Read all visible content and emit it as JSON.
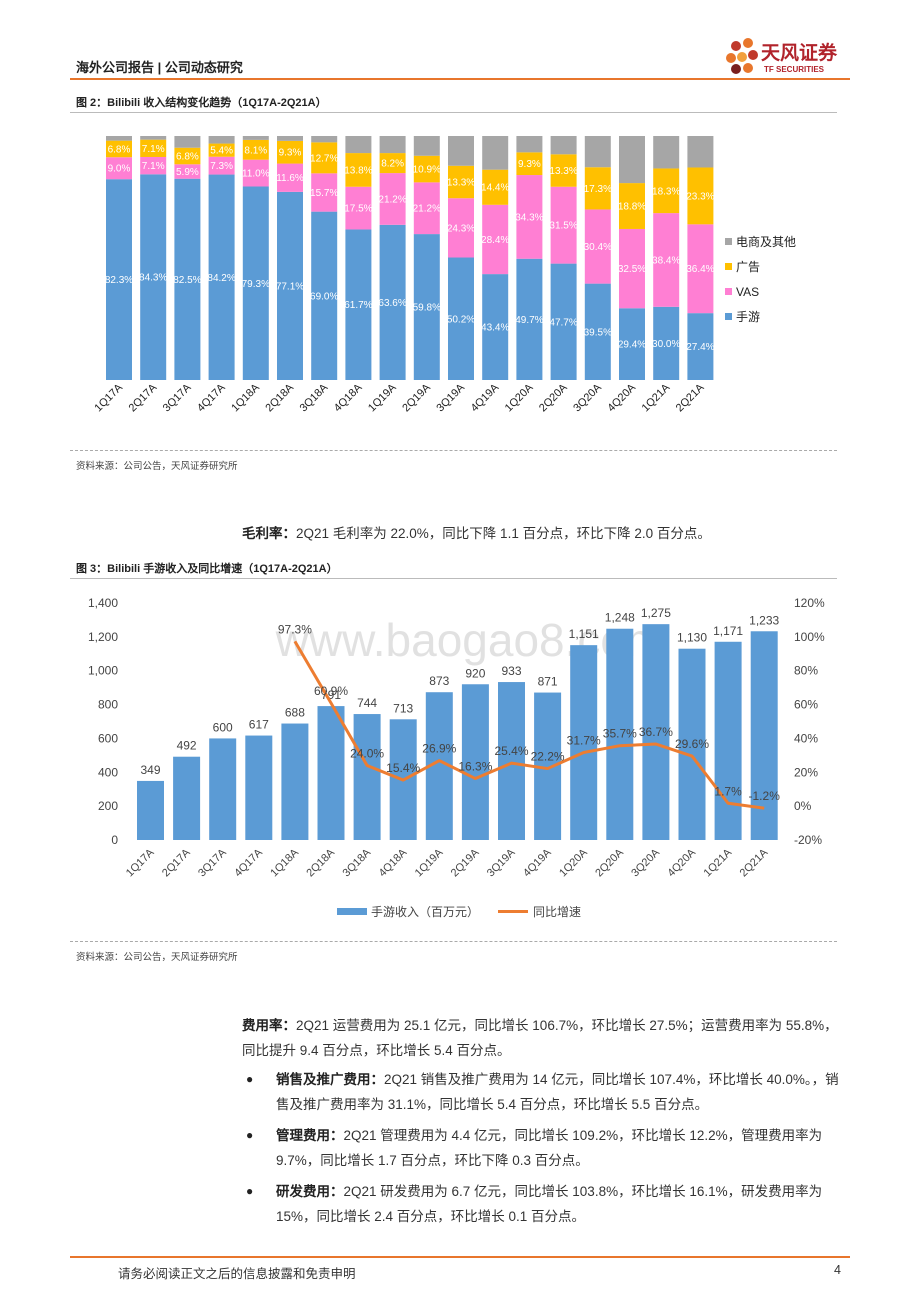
{
  "header": {
    "left": "海外公司报告 | 公司动态研究",
    "logo_cn": "天风证券",
    "logo_en": "TF SECURITIES"
  },
  "fig2": {
    "title": "图 2：Bilibili 收入结构变化趋势（1Q17A-2Q21A）",
    "source": "资料来源：公司公告，天风证券研究所"
  },
  "text_gross": {
    "label": "毛利率：",
    "body": "2Q21 毛利率为 22.0%，同比下降 1.1 百分点，环比下降 2.0 百分点。"
  },
  "fig3": {
    "title": "图 3：Bilibili 手游收入及同比增速（1Q17A-2Q21A）",
    "source": "资料来源：公司公告，天风证券研究所",
    "watermark": "www.baogao8.com"
  },
  "text_cost": {
    "label": "费用率：",
    "body": "2Q21 运营费用为 25.1 亿元，同比增长 106.7%，环比增长 27.5%；运营费用率为 55.8%，同比提升 9.4 百分点，环比增长 5.4 百分点。"
  },
  "bullets": [
    {
      "label": "销售及推广费用：",
      "body": "2Q21 销售及推广费用为 14 亿元，同比增长 107.4%，环比增长 40.0%。，销售及推广费用率为 31.1%，同比增长 5.4 百分点，环比增长 5.5 百分点。"
    },
    {
      "label": "管理费用：",
      "body": "2Q21 管理费用为 4.4 亿元，同比增长 109.2%，环比增长 12.2%，管理费用率为 9.7%，同比增长 1.7 百分点，环比下降 0.3 百分点。"
    },
    {
      "label": "研发费用：",
      "body": "2Q21 研发费用为 6.7 亿元，同比增长 103.8%，环比增长 16.1%，研发费用率为 15%，同比增长 2.4 百分点，环比增长 0.1 百分点。"
    }
  ],
  "footer": {
    "disclaimer": "请务必阅读正文之后的信息披露和免责申明",
    "page": "4"
  },
  "colors": {
    "game": "#5b9bd5",
    "vas": "#ff7fd3",
    "ads": "#ffc000",
    "other": "#a6a6a6",
    "line": "#ed7d31",
    "accent": "#e8762c"
  },
  "chart_data": [
    {
      "type": "bar",
      "stacked": true,
      "percent": true,
      "title": "",
      "categories": [
        "1Q17A",
        "2Q17A",
        "3Q17A",
        "4Q17A",
        "1Q18A",
        "2Q18A",
        "3Q18A",
        "4Q18A",
        "1Q19A",
        "2Q19A",
        "3Q19A",
        "4Q19A",
        "1Q20A",
        "2Q20A",
        "3Q20A",
        "4Q20A",
        "1Q21A",
        "2Q21A"
      ],
      "series": [
        {
          "name": "手游",
          "values": [
            82.3,
            84.3,
            82.5,
            84.2,
            79.3,
            77.1,
            69.0,
            61.7,
            63.6,
            59.8,
            50.2,
            43.4,
            49.7,
            47.7,
            39.5,
            29.4,
            30.0,
            27.4
          ],
          "labels": [
            "82.3%",
            "84.3%",
            "82.5%",
            "84.2%",
            "79.3%",
            "77.1%",
            "69.0%",
            "61.7%",
            "63.6%",
            "59.8%",
            "50.2%",
            "43.4%",
            "49.7%",
            "47.7%",
            "39.5%",
            "29.4%",
            "30.0%",
            "27.4%"
          ]
        },
        {
          "name": "VAS",
          "values": [
            9.0,
            7.1,
            5.9,
            7.3,
            11.0,
            11.6,
            15.7,
            17.5,
            21.2,
            21.2,
            24.3,
            28.4,
            34.3,
            31.5,
            30.4,
            32.5,
            38.4,
            36.4
          ],
          "labels": [
            "9.0%",
            "7.1%",
            "5.9%",
            "7.3%",
            "11.0%",
            "11.6%",
            "15.7%",
            "17.5%",
            "21.2%",
            "21.2%",
            "24.3%",
            "28.4%",
            "34.3%",
            "31.5%",
            "30.4%",
            "32.5%",
            "38.4%",
            "36.4%"
          ]
        },
        {
          "name": "广告",
          "values": [
            6.8,
            7.1,
            6.8,
            5.4,
            8.1,
            9.3,
            12.7,
            13.8,
            8.2,
            10.9,
            13.3,
            14.4,
            9.3,
            13.3,
            17.3,
            18.8,
            18.3,
            23.3
          ],
          "labels": [
            "6.8%",
            "7.1%",
            "6.8%",
            "5.4%",
            "8.1%",
            "9.3%",
            "12.7%",
            "13.8%",
            "8.2%",
            "10.9%",
            "13.3%",
            "14.4%",
            "9.3%",
            "13.3%",
            "17.3%",
            "18.8%",
            "18.3%",
            "23.3%"
          ]
        },
        {
          "name": "电商及其他",
          "values": [
            1.9,
            1.5,
            4.8,
            3.1,
            1.6,
            2.0,
            2.6,
            7.0,
            7.0,
            8.1,
            12.2,
            13.8,
            6.7,
            7.5,
            12.8,
            19.3,
            13.3,
            12.9
          ]
        }
      ],
      "legend": [
        "电商及其他",
        "广告",
        "VAS",
        "手游"
      ],
      "ylim": [
        0,
        100
      ]
    },
    {
      "type": "bar+line",
      "categories": [
        "1Q17A",
        "2Q17A",
        "3Q17A",
        "4Q17A",
        "1Q18A",
        "2Q18A",
        "3Q18A",
        "4Q18A",
        "1Q19A",
        "2Q19A",
        "3Q19A",
        "4Q19A",
        "1Q20A",
        "2Q20A",
        "3Q20A",
        "4Q20A",
        "1Q21A",
        "2Q21A"
      ],
      "bar_series": {
        "name": "手游收入（百万元）",
        "values": [
          349,
          492,
          600,
          617,
          688,
          791,
          744,
          713,
          873,
          920,
          933,
          871,
          1151,
          1248,
          1275,
          1130,
          1171,
          1233
        ],
        "labels": [
          "349",
          "492",
          "600",
          "617",
          "688",
          "791",
          "744",
          "713",
          "873",
          "920",
          "933",
          "871",
          "1,151",
          "1,248",
          "1,275",
          "1,130",
          "1,171",
          "1,233"
        ]
      },
      "line_series": {
        "name": "同比增速",
        "start_index": 4,
        "values": [
          97.3,
          60.9,
          24.0,
          15.4,
          26.9,
          16.3,
          25.4,
          22.2,
          31.7,
          35.7,
          36.7,
          29.6,
          1.7,
          -1.2
        ],
        "labels": [
          "97.3%",
          "60.9%",
          "24.0%",
          "15.4%",
          "26.9%",
          "16.3%",
          "25.4%",
          "22.2%",
          "31.7%",
          "35.7%",
          "36.7%",
          "29.6%",
          "1.7%",
          "-1.2%"
        ]
      },
      "y_left": {
        "ylim": [
          0,
          1400
        ],
        "ticks": [
          "0",
          "200",
          "400",
          "600",
          "800",
          "1,000",
          "1,200",
          "1,400"
        ]
      },
      "y_right": {
        "ylim": [
          -20,
          120
        ],
        "ticks": [
          "-20%",
          "0%",
          "20%",
          "40%",
          "60%",
          "80%",
          "100%",
          "120%"
        ]
      },
      "legend": [
        "手游收入（百万元）",
        "同比增速"
      ]
    }
  ]
}
